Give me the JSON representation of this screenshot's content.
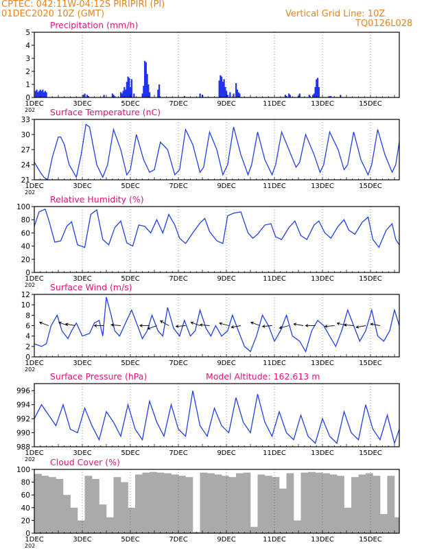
{
  "header": {
    "line1": "CPTEC:   042:11W-04:12S   PIRIPIRI (PI)",
    "line2": "01DEC2020 10Z (GMT)",
    "vgrid": "Vertical Grid Line: 10Z",
    "code": "TQ0126L028"
  },
  "colors": {
    "accent": "#e8821c",
    "title": "#e0137a",
    "line": "#1f3fe6",
    "bar": "#2233ee",
    "cloud": "#aaaaaa"
  },
  "xaxis": {
    "ticks": [
      "1DEC",
      "3DEC",
      "5DEC",
      "7DEC",
      "9DEC",
      "11DEC",
      "13DEC",
      "15DEC"
    ],
    "tick_days": [
      0,
      2,
      4,
      6,
      8,
      10,
      12,
      14
    ],
    "range_days": [
      0,
      15.2
    ],
    "year_fragment": "202"
  },
  "chart_data": [
    {
      "type": "bar",
      "title": "Precipitation (mm/h)",
      "ylim": [
        0,
        5
      ],
      "yticks": [
        0,
        1,
        2,
        3,
        4,
        5
      ],
      "x": [
        0.05,
        0.1,
        0.15,
        0.2,
        0.25,
        0.3,
        0.35,
        0.4,
        0.45,
        0.5,
        2.05,
        2.1,
        2.2,
        2.25,
        2.9,
        3.25,
        3.3,
        3.35,
        3.6,
        3.65,
        3.7,
        3.75,
        3.8,
        3.85,
        3.9,
        3.95,
        4.0,
        4.05,
        4.15,
        4.5,
        4.55,
        4.6,
        4.65,
        4.7,
        4.75,
        4.8,
        5.15,
        5.2,
        6.25,
        6.9,
        7.0,
        7.7,
        7.75,
        7.8,
        7.85,
        7.9,
        7.95,
        8.0,
        8.05,
        8.15,
        8.3,
        8.4,
        8.45,
        8.5,
        8.55,
        10.45,
        10.5,
        10.6,
        10.65,
        11.0,
        11.05,
        11.45,
        11.6,
        11.65,
        11.7,
        11.75,
        11.8,
        11.85,
        12.3,
        12.35,
        12.75
      ],
      "values": [
        0.5,
        0.6,
        0.4,
        0.5,
        0.6,
        0.5,
        0.6,
        0.4,
        0.5,
        0.4,
        0.2,
        0.3,
        0.2,
        0.1,
        0.2,
        0.3,
        0.2,
        0.1,
        0.4,
        0.3,
        0.5,
        0.8,
        0.6,
        1.2,
        1.6,
        1.5,
        0.8,
        1.4,
        0.3,
        0.3,
        0.9,
        2.8,
        2.7,
        1.8,
        1.0,
        0.4,
        0.6,
        1.0,
        0.1,
        0.3,
        0.2,
        1.3,
        1.7,
        1.6,
        1.2,
        1.4,
        0.8,
        0.5,
        0.2,
        0.4,
        0.3,
        1.1,
        0.6,
        0.4,
        0.3,
        0.2,
        0.1,
        0.3,
        0.2,
        0.1,
        0.3,
        0.2,
        0.2,
        0.3,
        0.8,
        1.4,
        1.5,
        0.8,
        0.1,
        0.1,
        0.2
      ]
    },
    {
      "type": "line",
      "title": "Surface Temperature (nC)",
      "ylim": [
        21,
        33
      ],
      "yticks": [
        21,
        24,
        27,
        30,
        33
      ],
      "x": [
        0,
        0.25,
        0.4,
        0.55,
        0.75,
        1.0,
        1.1,
        1.25,
        1.45,
        1.75,
        1.95,
        2.15,
        2.3,
        2.6,
        2.85,
        3.05,
        3.3,
        3.6,
        3.85,
        4.0,
        4.25,
        4.55,
        4.8,
        5.0,
        5.25,
        5.55,
        5.85,
        6.05,
        6.3,
        6.6,
        6.9,
        7.05,
        7.3,
        7.6,
        7.85,
        8.05,
        8.3,
        8.6,
        8.9,
        9.05,
        9.3,
        9.6,
        9.9,
        10.05,
        10.3,
        10.6,
        10.9,
        11.05,
        11.3,
        11.65,
        11.9,
        12.05,
        12.3,
        12.65,
        12.9,
        13.05,
        13.3,
        13.6,
        13.9,
        14.05,
        14.3,
        14.6,
        14.9,
        15.05,
        15.2
      ],
      "values": [
        24.5,
        22.5,
        21.5,
        21,
        25.5,
        29.5,
        29.5,
        28,
        24,
        21.5,
        26,
        32,
        31.5,
        24,
        21.5,
        24,
        31,
        27,
        22,
        23,
        30,
        25,
        22.5,
        23,
        28.5,
        27,
        22,
        23,
        31,
        28,
        22.5,
        23.5,
        30.5,
        27,
        22,
        24,
        31.5,
        26,
        22,
        24,
        30.5,
        25,
        22,
        24,
        30.5,
        27,
        23.5,
        24.5,
        30,
        26,
        22.5,
        24,
        30.5,
        27,
        23,
        24,
        30.5,
        25,
        22,
        24,
        31,
        26,
        22.5,
        24,
        28.5
      ]
    },
    {
      "type": "line",
      "title": "Relative Humidity (%)",
      "ylim": [
        0,
        100
      ],
      "yticks": [
        0,
        20,
        40,
        60,
        80,
        100
      ],
      "x": [
        0,
        0.2,
        0.45,
        0.6,
        0.85,
        1.1,
        1.35,
        1.55,
        1.8,
        2.1,
        2.35,
        2.6,
        2.85,
        3.1,
        3.35,
        3.6,
        3.85,
        4.1,
        4.35,
        4.6,
        4.85,
        5.1,
        5.35,
        5.6,
        5.85,
        6.05,
        6.3,
        6.6,
        6.9,
        7.1,
        7.3,
        7.6,
        7.85,
        8.05,
        8.3,
        8.6,
        8.9,
        9.1,
        9.3,
        9.6,
        9.85,
        10.05,
        10.3,
        10.6,
        10.85,
        11.1,
        11.35,
        11.65,
        11.85,
        12.1,
        12.35,
        12.65,
        12.9,
        13.1,
        13.35,
        13.65,
        13.9,
        14.1,
        14.35,
        14.65,
        14.9,
        15.05,
        15.2
      ],
      "values": [
        70,
        92,
        96,
        80,
        46,
        48,
        70,
        77,
        42,
        38,
        88,
        95,
        50,
        42,
        68,
        78,
        45,
        40,
        72,
        70,
        60,
        80,
        60,
        88,
        72,
        52,
        44,
        60,
        75,
        82,
        62,
        48,
        44,
        86,
        90,
        92,
        60,
        52,
        58,
        72,
        74,
        54,
        50,
        68,
        78,
        56,
        50,
        72,
        78,
        60,
        52,
        70,
        80,
        64,
        58,
        76,
        84,
        50,
        38,
        64,
        74,
        50,
        42
      ]
    },
    {
      "type": "line",
      "title": "Surface Wind (m/s)",
      "ylim": [
        0,
        12
      ],
      "yticks": [
        0,
        2,
        4,
        6,
        8,
        10,
        12
      ],
      "x": [
        0,
        0.3,
        0.5,
        0.7,
        0.95,
        1.15,
        1.4,
        1.55,
        1.75,
        2.0,
        2.3,
        2.5,
        2.7,
        2.85,
        3.0,
        3.2,
        3.35,
        3.55,
        3.8,
        4.05,
        4.3,
        4.5,
        4.7,
        4.9,
        5.15,
        5.35,
        5.55,
        5.8,
        6.05,
        6.25,
        6.5,
        6.7,
        6.9,
        7.15,
        7.35,
        7.55,
        7.8,
        8.05,
        8.25,
        8.5,
        8.75,
        9.0,
        9.25,
        9.5,
        9.75,
        10.0,
        10.25,
        10.5,
        10.75,
        11.05,
        11.3,
        11.55,
        11.8,
        12.05,
        12.3,
        12.55,
        12.8,
        13.05,
        13.3,
        13.55,
        13.8,
        14.05,
        14.3,
        14.55,
        14.8,
        15.0,
        15.2
      ],
      "values": [
        2.5,
        2,
        2.5,
        6,
        8,
        5,
        3.5,
        5,
        6.5,
        4,
        4.5,
        6.5,
        7,
        4,
        11.5,
        8,
        5,
        4,
        6.5,
        9,
        6,
        3.5,
        5,
        8,
        5,
        4,
        9.5,
        5.5,
        4,
        7,
        4,
        5,
        9,
        5.5,
        4,
        6,
        4,
        5,
        8,
        5,
        2,
        1,
        4,
        8,
        6,
        3,
        5,
        8,
        4,
        3,
        1,
        5,
        7,
        6,
        4,
        2,
        5,
        9,
        6,
        3,
        5,
        9,
        4,
        3,
        5,
        9,
        6
      ]
    },
    {
      "type": "line",
      "title": "Surface Pressure (hPa)",
      "subtitle": "Model Altitude: 162.613 m",
      "ylim": [
        988,
        997
      ],
      "yticks": [
        988,
        990,
        992,
        994,
        996
      ],
      "x": [
        0,
        0.3,
        0.6,
        0.9,
        1.2,
        1.5,
        1.8,
        2.1,
        2.4,
        2.7,
        3.0,
        3.3,
        3.6,
        3.9,
        4.2,
        4.5,
        4.8,
        5.1,
        5.4,
        5.7,
        6.0,
        6.3,
        6.6,
        6.9,
        7.2,
        7.5,
        7.8,
        8.1,
        8.4,
        8.7,
        9.0,
        9.3,
        9.6,
        9.9,
        10.2,
        10.5,
        10.8,
        11.1,
        11.4,
        11.7,
        12.0,
        12.3,
        12.6,
        12.9,
        13.2,
        13.5,
        13.8,
        14.1,
        14.4,
        14.7,
        15.0,
        15.2
      ],
      "values": [
        992,
        994,
        992.5,
        991,
        994,
        990.5,
        990,
        993.5,
        991,
        989,
        993,
        991.5,
        989.5,
        994,
        990.5,
        989,
        994.5,
        991.5,
        989.5,
        994,
        990.5,
        989.5,
        996,
        991,
        989.5,
        993.5,
        991,
        990,
        995,
        991.5,
        990,
        995.5,
        991.5,
        989.5,
        993,
        990,
        989,
        992.5,
        989.5,
        988.5,
        992,
        989.5,
        988.5,
        993,
        990,
        989,
        994,
        990.5,
        989,
        992.5,
        988.5,
        990.5
      ]
    },
    {
      "type": "area",
      "title": "Cloud Cover (%)",
      "ylim": [
        0,
        100
      ],
      "yticks": [
        0,
        20,
        40,
        60,
        80,
        100
      ],
      "x": [
        0,
        0.3,
        0.6,
        0.9,
        1.2,
        1.5,
        1.8,
        2.1,
        2.4,
        2.7,
        3.0,
        3.3,
        3.6,
        3.9,
        4.2,
        4.5,
        4.8,
        5.1,
        5.4,
        5.7,
        6.0,
        6.3,
        6.6,
        6.9,
        7.2,
        7.5,
        7.8,
        8.1,
        8.4,
        8.7,
        9.0,
        9.3,
        9.6,
        9.9,
        10.2,
        10.5,
        10.8,
        11.1,
        11.4,
        11.7,
        12.0,
        12.3,
        12.6,
        12.9,
        13.2,
        13.5,
        13.8,
        14.1,
        14.4,
        14.7,
        15.0,
        15.2
      ],
      "values": [
        93,
        90,
        88,
        85,
        60,
        40,
        20,
        90,
        85,
        45,
        25,
        88,
        80,
        40,
        92,
        95,
        96,
        95,
        94,
        92,
        90,
        88,
        2,
        95,
        94,
        92,
        90,
        88,
        94,
        95,
        10,
        92,
        90,
        88,
        70,
        94,
        20,
        95,
        96,
        95,
        94,
        92,
        90,
        40,
        88,
        92,
        94,
        90,
        30,
        90,
        25,
        20
      ]
    }
  ]
}
